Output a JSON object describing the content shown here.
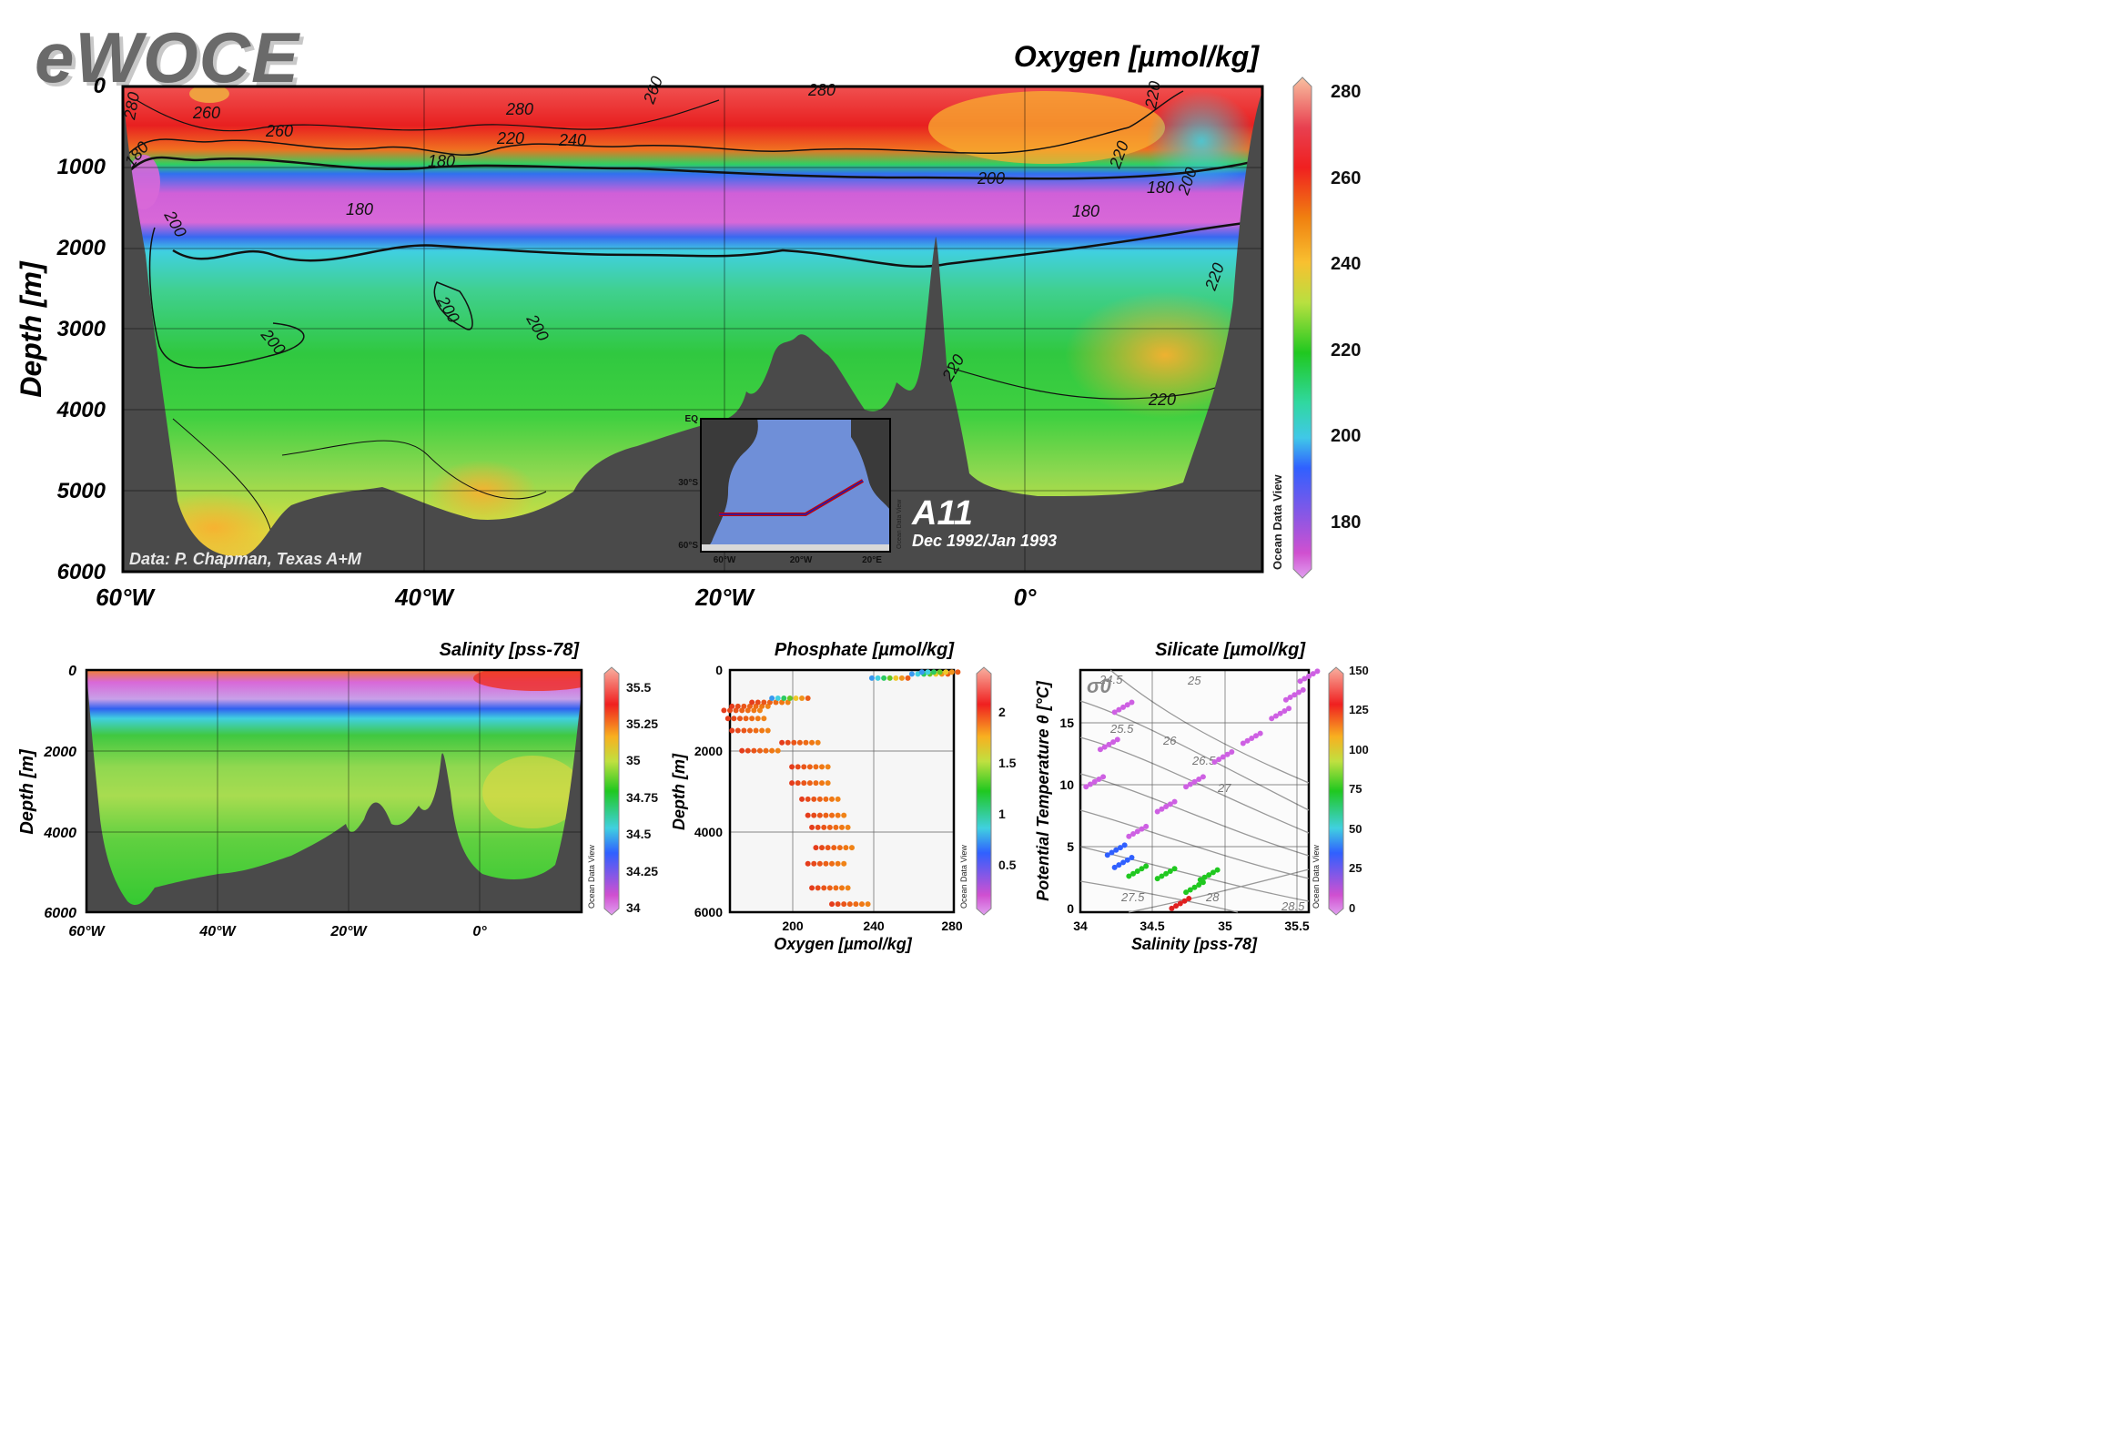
{
  "logo": "eWOCE",
  "main": {
    "title": "Oxygen [µmol/kg]",
    "ylabel": "Depth [m]",
    "yticks": [
      "0",
      "1000",
      "2000",
      "3000",
      "4000",
      "5000",
      "6000"
    ],
    "xticks": [
      "60°W",
      "40°W",
      "20°W",
      "0°"
    ],
    "credit": "Data: P. Chapman, Texas A+M",
    "section": "A11",
    "dates": "Dec 1992/Jan 1993",
    "colorbar_ticks": [
      "280",
      "260",
      "240",
      "220",
      "200",
      "180"
    ],
    "odv_label": "Ocean Data View",
    "contours": [
      "280",
      "260",
      "260",
      "260",
      "280",
      "280",
      "240",
      "220",
      "220",
      "180",
      "180",
      "180",
      "200",
      "180",
      "180",
      "200",
      "200",
      "200",
      "200",
      "200",
      "220",
      "220",
      "220",
      "220"
    ]
  },
  "inset": {
    "lat_ticks": [
      "EQ",
      "30°S",
      "60°S"
    ],
    "lon_ticks": [
      "60°W",
      "20°W",
      "20°E"
    ],
    "odv_label": "Ocean Data View"
  },
  "salinity": {
    "title": "Salinity [pss-78]",
    "ylabel": "Depth [m]",
    "yticks": [
      "0",
      "2000",
      "4000",
      "6000"
    ],
    "xticks": [
      "60°W",
      "40°W",
      "20°W",
      "0°"
    ],
    "colorbar_ticks": [
      "35.5",
      "35.25",
      "35",
      "34.75",
      "34.5",
      "34.25",
      "34"
    ],
    "odv_label": "Ocean Data View"
  },
  "phosphate": {
    "title": "Phosphate [µmol/kg]",
    "ylabel": "Depth [m]",
    "xlabel": "Oxygen [µmol/kg]",
    "yticks": [
      "0",
      "2000",
      "4000",
      "6000"
    ],
    "xticks": [
      "200",
      "240",
      "280"
    ],
    "colorbar_ticks": [
      "2",
      "1.5",
      "1",
      "0.5"
    ],
    "odv_label": "Ocean Data View"
  },
  "silicate": {
    "title": "Silicate [µmol/kg]",
    "ylabel": "Potential Temperature θ [°C]",
    "xlabel": "Salinity [pss-78]",
    "yticks": [
      "0",
      "5",
      "10",
      "15"
    ],
    "xticks": [
      "34",
      "34.5",
      "35",
      "35.5"
    ],
    "sigma_label": "σ0",
    "isopycnals": [
      "24.5",
      "25",
      "25.5",
      "26",
      "26.5",
      "27",
      "27.5",
      "28",
      "28.5"
    ],
    "colorbar_ticks": [
      "150",
      "125",
      "100",
      "75",
      "50",
      "25",
      "0"
    ],
    "odv_label": "Ocean Data View"
  },
  "chart_data": [
    {
      "type": "heatmap",
      "title": "Oxygen [µmol/kg]",
      "xlabel": "",
      "ylabel": "Depth [m]",
      "x_ticks": [
        "60°W",
        "40°W",
        "20°W",
        "0°"
      ],
      "ylim": [
        6000,
        0
      ],
      "zlim": [
        170,
        285
      ],
      "colorbar": [
        180,
        200,
        220,
        240,
        260,
        280
      ],
      "contour_labels": [
        180,
        200,
        220,
        240,
        260,
        280
      ]
    },
    {
      "type": "heatmap",
      "title": "Salinity [pss-78]",
      "ylabel": "Depth [m]",
      "x_ticks": [
        "60°W",
        "40°W",
        "20°W",
        "0°"
      ],
      "ylim": [
        6000,
        0
      ],
      "colorbar": [
        34,
        34.25,
        34.5,
        34.75,
        35,
        35.25,
        35.5
      ]
    },
    {
      "type": "scatter",
      "title": "Phosphate [µmol/kg]",
      "xlabel": "Oxygen [µmol/kg]",
      "ylabel": "Depth [m]",
      "xlim": [
        170,
        282
      ],
      "ylim": [
        6000,
        0
      ],
      "colorbar": [
        0.5,
        1,
        1.5,
        2
      ],
      "series": [
        {
          "x": [
            185,
            180,
            178,
            176,
            180,
            190,
            200,
            205,
            210,
            210,
            215,
            218,
            220,
            222,
            218,
            220,
            230,
            250,
            270,
            275
          ],
          "y": [
            2000,
            1500,
            1200,
            1000,
            900,
            800,
            700,
            1800,
            2400,
            2800,
            3200,
            3600,
            3900,
            4400,
            4800,
            5400,
            5800,
            200,
            100,
            50
          ]
        }
      ]
    },
    {
      "type": "scatter",
      "title": "Silicate [µmol/kg]",
      "xlabel": "Salinity [pss-78]",
      "ylabel": "Potential Temperature θ [°C]",
      "xlim": [
        34,
        35.6
      ],
      "ylim": [
        -0.5,
        19
      ],
      "colorbar": [
        0,
        25,
        50,
        75,
        100,
        125,
        150
      ],
      "series": [
        {
          "x": [
            34.7,
            34.8,
            34.9,
            34.6,
            34.4,
            34.3,
            34.25,
            34.4,
            34.6,
            34.8,
            35.0,
            35.2,
            35.4,
            35.5,
            35.6,
            34.1,
            34.2,
            34.3
          ],
          "y": [
            0.2,
            1.5,
            2.5,
            2.6,
            2.8,
            3.5,
            4.5,
            6,
            8,
            10,
            12,
            13.5,
            15.5,
            17,
            18.5,
            10,
            13,
            16
          ]
        }
      ]
    }
  ]
}
